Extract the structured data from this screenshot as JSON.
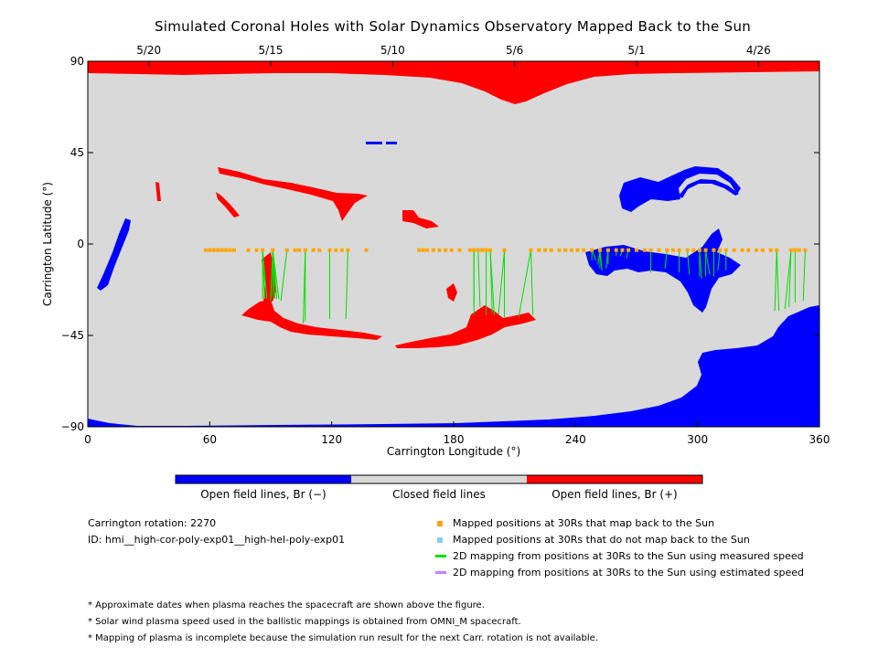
{
  "title": "Simulated Coronal Holes with Solar Dynamics Observatory Mapped Back to the Sun",
  "chart_data": {
    "type": "map",
    "xlabel": "Carrington Longitude (°)",
    "ylabel": "Carrington Latitude (°)",
    "xlim": [
      0,
      360
    ],
    "ylim": [
      -90,
      90
    ],
    "x_ticks": [
      0,
      60,
      120,
      180,
      240,
      300,
      360
    ],
    "y_ticks": [
      {
        "value": 90,
        "label": "90"
      },
      {
        "value": 45,
        "label": "45"
      },
      {
        "value": 0,
        "label": "0"
      },
      {
        "value": -45,
        "label": "−45"
      },
      {
        "value": -90,
        "label": "−90"
      }
    ],
    "top_date_ticks": [
      {
        "longitude": 30,
        "label": "5/20"
      },
      {
        "longitude": 90,
        "label": "5/15"
      },
      {
        "longitude": 150,
        "label": "5/10"
      },
      {
        "longitude": 210,
        "label": "5/6"
      },
      {
        "longitude": 270,
        "label": "5/1"
      },
      {
        "longitude": 330,
        "label": "4/26"
      }
    ],
    "colors": {
      "open_negative": "#0000ff",
      "closed": "#d9d9d9",
      "open_positive": "#ff0000",
      "mapped_points": "#ffa500",
      "unmapped_points": "#87cefa",
      "measured_speed_line": "#00e000",
      "estimated_speed_line": "#c080ff"
    },
    "colorbar": [
      {
        "label": "Open field lines, Br (−)",
        "color": "#0000ff"
      },
      {
        "label": "Closed field lines",
        "color": "#d9d9d9"
      },
      {
        "label": "Open field lines, Br (+)",
        "color": "#ff0000"
      }
    ],
    "mapped_positions_longitude": [
      58,
      60,
      62,
      64,
      66,
      68,
      70,
      72,
      79,
      83,
      86,
      91,
      98,
      102,
      104,
      107,
      111,
      114,
      119,
      122,
      125,
      128,
      137,
      163,
      165,
      167,
      170,
      173,
      176,
      179,
      183,
      188,
      190,
      192,
      194,
      196,
      198,
      205,
      218,
      222,
      225,
      228,
      232,
      235,
      238,
      241,
      244,
      248,
      252,
      256,
      260,
      263,
      266,
      270,
      274,
      277,
      281,
      285,
      288,
      291,
      295,
      298,
      301,
      304,
      308,
      311,
      314,
      318,
      322,
      325,
      329,
      332,
      336,
      339,
      346,
      348,
      350,
      353
    ],
    "footpoints": [
      [
        88,
        -26
      ],
      [
        88,
        -27
      ],
      [
        88,
        -26
      ],
      [
        87,
        -27
      ],
      [
        86,
        -27
      ],
      [
        90,
        -28
      ],
      [
        91,
        -26
      ],
      [
        95,
        -28
      ],
      [
        92,
        -26
      ],
      [
        92,
        -27
      ],
      [
        90,
        -27
      ],
      [
        94,
        -27
      ],
      [
        90,
        -28
      ],
      [
        93,
        -27
      ],
      [
        92,
        -27
      ],
      [
        107,
        -38
      ],
      [
        106,
        -39
      ],
      [
        119,
        -37
      ],
      [
        127,
        -37
      ],
      [
        190,
        -31
      ],
      [
        193,
        -31
      ],
      [
        190,
        -35
      ],
      [
        196,
        -35
      ],
      [
        200,
        -35
      ],
      [
        202,
        -35
      ],
      [
        205,
        -36
      ],
      [
        199,
        -34
      ],
      [
        212,
        -36
      ],
      [
        219,
        -35
      ],
      [
        250,
        -8
      ],
      [
        248,
        -8
      ],
      [
        251,
        -10
      ],
      [
        252,
        -12
      ],
      [
        253,
        -13
      ],
      [
        255,
        -12
      ],
      [
        256,
        -10
      ],
      [
        260,
        -6
      ],
      [
        262,
        -6
      ],
      [
        265,
        -7
      ],
      [
        277,
        -14
      ],
      [
        284,
        -12
      ],
      [
        291,
        -14
      ],
      [
        296,
        -15
      ],
      [
        301,
        -16
      ],
      [
        302,
        -17
      ],
      [
        304,
        -16
      ],
      [
        306,
        -15
      ],
      [
        308,
        -16
      ],
      [
        310,
        -13
      ],
      [
        314,
        -13
      ],
      [
        338,
        -33
      ],
      [
        340,
        -33
      ],
      [
        343,
        -32
      ],
      [
        345,
        -31
      ],
      [
        348,
        -29
      ],
      [
        352,
        -28
      ]
    ],
    "info": {
      "carrington_rotation": "Carrington rotation: 2270",
      "id": "ID: hmi__high-cor-poly-exp01__high-hel-poly-exp01"
    },
    "legend": [
      {
        "label": "Mapped positions at 30Rs that map back to the Sun",
        "marker": "square",
        "color": "#ffa500"
      },
      {
        "label": "Mapped positions at 30Rs that do not map back to the Sun",
        "marker": "square",
        "color": "#87cefa"
      },
      {
        "label": "2D mapping from positions at 30Rs to the Sun using measured speed",
        "marker": "line",
        "color": "#00e000"
      },
      {
        "label": "2D mapping from positions at 30Rs to the Sun using estimated speed",
        "marker": "line",
        "color": "#c080ff"
      }
    ],
    "notes": [
      "* Approximate dates when plasma reaches the spacecraft are shown above the figure.",
      "* Solar wind plasma speed used in the ballistic mappings is obtained from OMNI_M spacecraft.",
      "* Mapping of plasma is incomplete because the simulation run result for the next Carr. rotation is not available."
    ]
  }
}
